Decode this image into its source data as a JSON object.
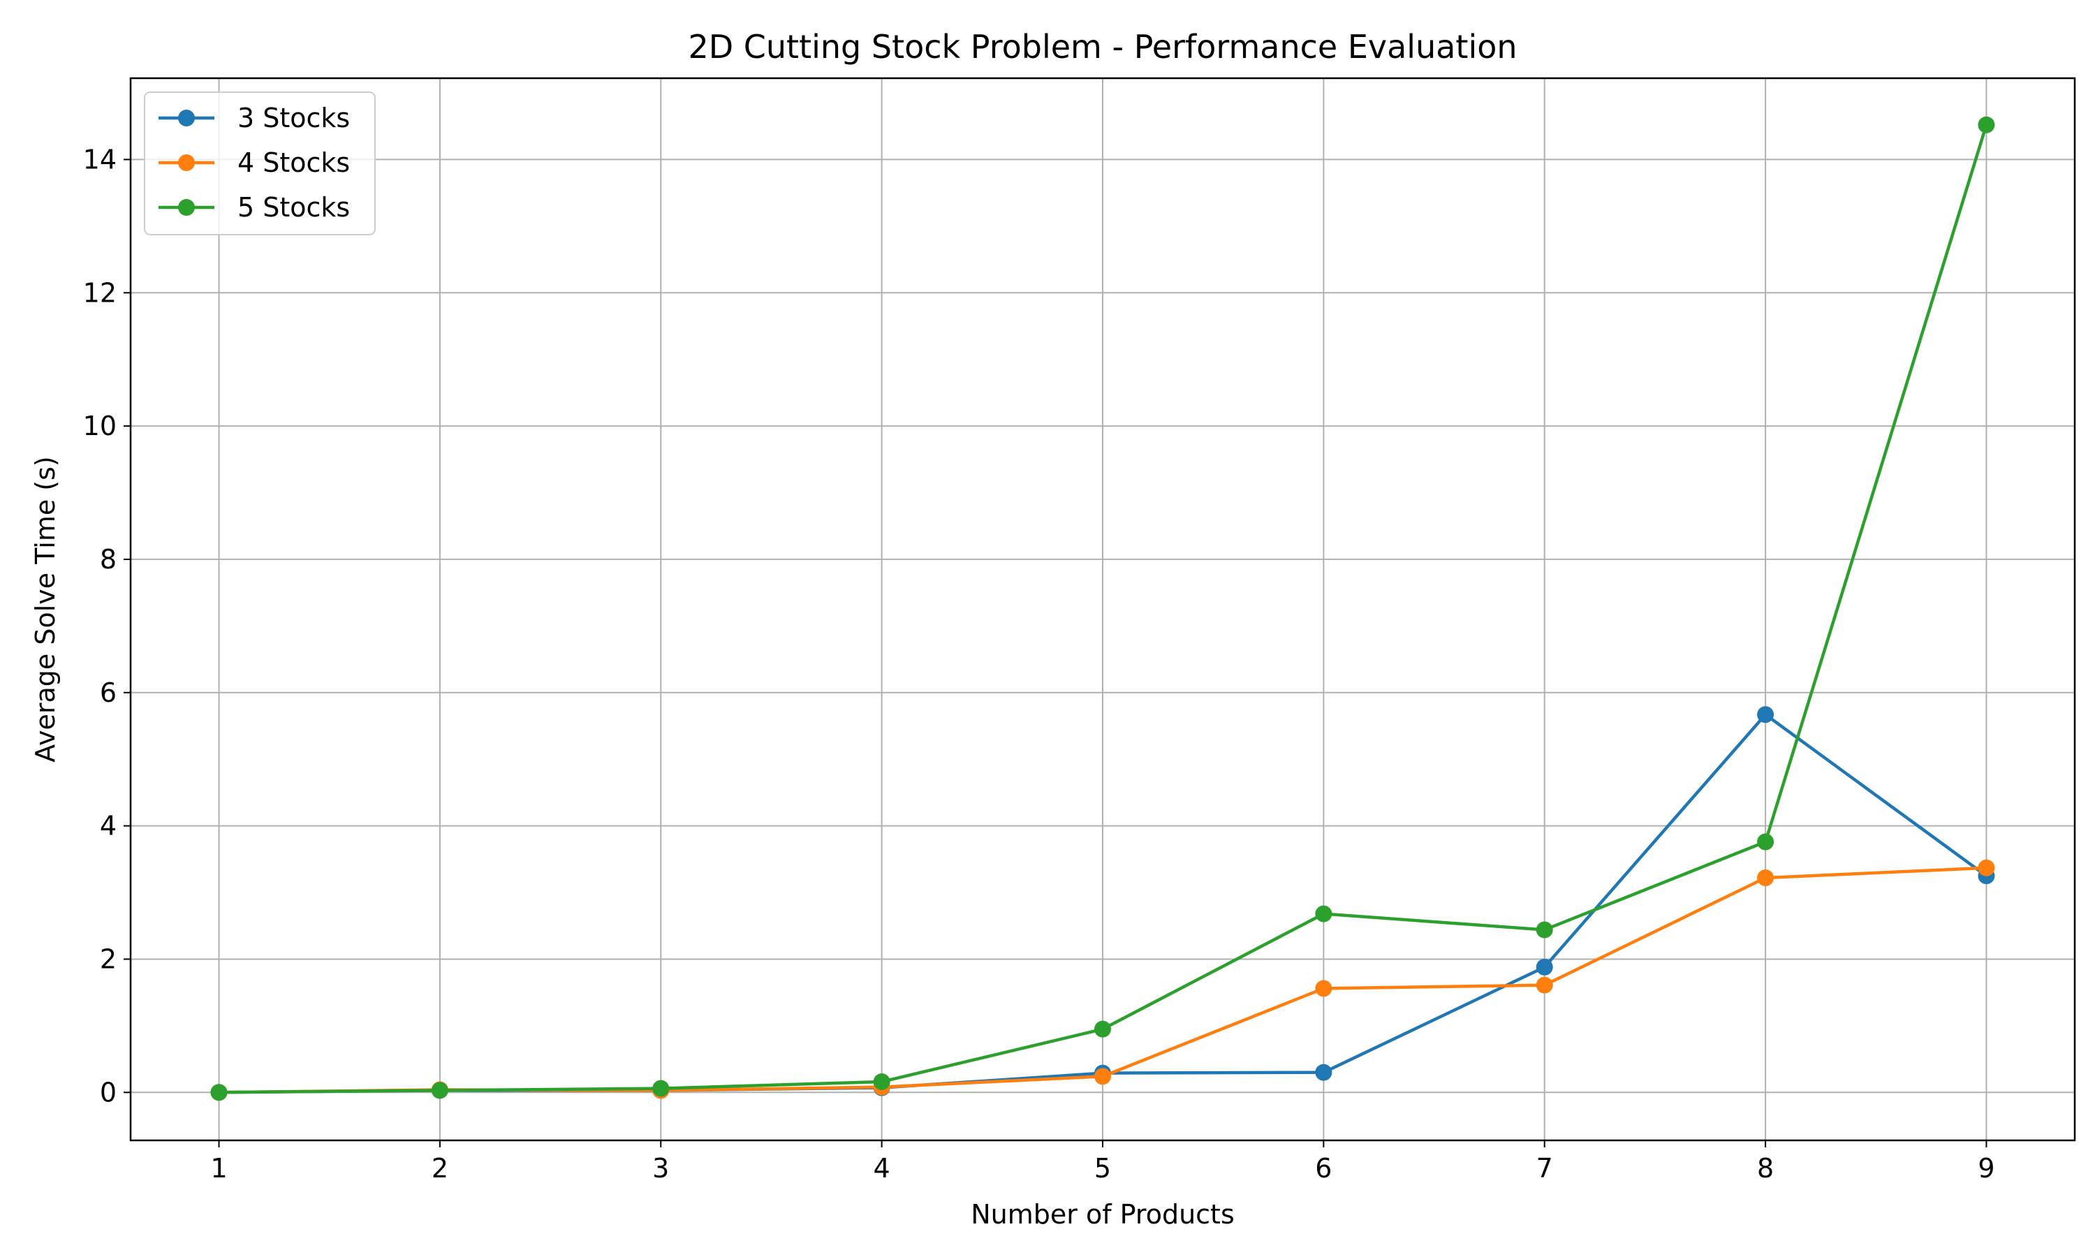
{
  "chart_data": {
    "type": "line",
    "title": "2D Cutting Stock Problem - Performance Evaluation",
    "xlabel": "Number of Products",
    "ylabel": "Average Solve Time (s)",
    "x": [
      1,
      2,
      3,
      4,
      5,
      6,
      7,
      8,
      9
    ],
    "xlim": [
      0.6,
      9.4
    ],
    "ylim": [
      -0.72,
      15.22
    ],
    "xticks": [
      1,
      2,
      3,
      4,
      5,
      6,
      7,
      8,
      9
    ],
    "yticks": [
      0,
      2,
      4,
      6,
      8,
      10,
      12,
      14
    ],
    "grid": true,
    "legend_position": "top-left",
    "marker": "circle",
    "series": [
      {
        "name": "3 Stocks",
        "color": "#1f77b4",
        "values": [
          0.0,
          0.03,
          0.03,
          0.07,
          0.29,
          0.3,
          1.88,
          5.67,
          3.25
        ]
      },
      {
        "name": "4 Stocks",
        "color": "#ff7f0e",
        "values": [
          0.0,
          0.04,
          0.03,
          0.08,
          0.24,
          1.56,
          1.61,
          3.22,
          3.37
        ]
      },
      {
        "name": "5 Stocks",
        "color": "#2ca02c",
        "values": [
          0.0,
          0.03,
          0.06,
          0.16,
          0.95,
          2.68,
          2.44,
          3.76,
          14.52
        ]
      }
    ]
  }
}
